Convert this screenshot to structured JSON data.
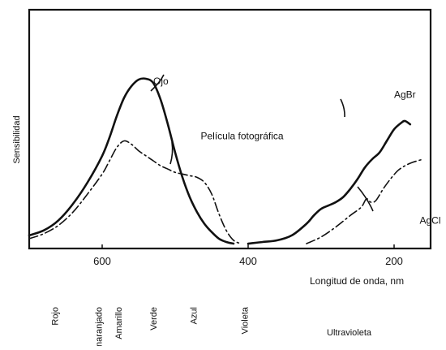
{
  "chart_data": {
    "type": "line",
    "title": "",
    "xlabel": "Longitud de onda, nm",
    "ylabel": "Sensibilidad",
    "xlim": [
      700,
      150
    ],
    "ylim": [
      0,
      1
    ],
    "x_ticks": [
      600,
      400,
      200
    ],
    "grid": false,
    "legend": "none (curves labeled directly)",
    "series": [
      {
        "name": "Ojo",
        "style": "solid",
        "label_point": [
          530,
          0.96
        ],
        "points": [
          [
            700,
            0.05
          ],
          [
            680,
            0.08
          ],
          [
            660,
            0.14
          ],
          [
            640,
            0.24
          ],
          [
            620,
            0.37
          ],
          [
            600,
            0.53
          ],
          [
            590,
            0.64
          ],
          [
            580,
            0.77
          ],
          [
            570,
            0.88
          ],
          [
            560,
            0.95
          ],
          [
            550,
            0.99
          ],
          [
            540,
            0.995
          ],
          [
            530,
            0.97
          ],
          [
            520,
            0.87
          ],
          [
            510,
            0.72
          ],
          [
            500,
            0.55
          ],
          [
            490,
            0.4
          ],
          [
            480,
            0.28
          ],
          [
            470,
            0.19
          ],
          [
            460,
            0.12
          ],
          [
            450,
            0.07
          ],
          [
            440,
            0.03
          ],
          [
            430,
            0.01
          ],
          [
            420,
            0.0
          ]
        ]
      },
      {
        "name": "Película fotográfica",
        "style": "dashdot",
        "label_point": [
          465,
          0.63
        ],
        "points": [
          [
            700,
            0.03
          ],
          [
            680,
            0.06
          ],
          [
            660,
            0.11
          ],
          [
            640,
            0.19
          ],
          [
            620,
            0.3
          ],
          [
            600,
            0.42
          ],
          [
            590,
            0.5
          ],
          [
            580,
            0.58
          ],
          [
            570,
            0.62
          ],
          [
            560,
            0.6
          ],
          [
            550,
            0.56
          ],
          [
            540,
            0.53
          ],
          [
            530,
            0.5
          ],
          [
            520,
            0.47
          ],
          [
            510,
            0.45
          ],
          [
            500,
            0.43
          ],
          [
            490,
            0.42
          ],
          [
            480,
            0.41
          ],
          [
            470,
            0.4
          ],
          [
            460,
            0.37
          ],
          [
            450,
            0.3
          ],
          [
            440,
            0.18
          ],
          [
            430,
            0.08
          ],
          [
            420,
            0.02
          ],
          [
            410,
            0.0
          ]
        ]
      },
      {
        "name": "AgBr",
        "style": "solid",
        "label_point": [
          200,
          0.88
        ],
        "points": [
          [
            400,
            0.0
          ],
          [
            380,
            0.01
          ],
          [
            360,
            0.02
          ],
          [
            340,
            0.05
          ],
          [
            320,
            0.12
          ],
          [
            310,
            0.17
          ],
          [
            300,
            0.21
          ],
          [
            290,
            0.23
          ],
          [
            280,
            0.25
          ],
          [
            270,
            0.28
          ],
          [
            260,
            0.33
          ],
          [
            250,
            0.39
          ],
          [
            240,
            0.46
          ],
          [
            230,
            0.51
          ],
          [
            220,
            0.55
          ],
          [
            210,
            0.62
          ],
          [
            200,
            0.69
          ],
          [
            190,
            0.73
          ],
          [
            185,
            0.74
          ],
          [
            178,
            0.72
          ]
        ]
      },
      {
        "name": "AgCl",
        "style": "dashdot",
        "label_point": [
          165,
          0.12
        ],
        "points": [
          [
            320,
            0.0
          ],
          [
            300,
            0.04
          ],
          [
            280,
            0.1
          ],
          [
            260,
            0.17
          ],
          [
            245,
            0.22
          ],
          [
            238,
            0.27
          ],
          [
            232,
            0.25
          ],
          [
            225,
            0.26
          ],
          [
            215,
            0.33
          ],
          [
            205,
            0.39
          ],
          [
            195,
            0.44
          ],
          [
            185,
            0.47
          ],
          [
            175,
            0.49
          ],
          [
            160,
            0.51
          ]
        ]
      }
    ],
    "color_bands": [
      {
        "label": "Rojo",
        "x": 665
      },
      {
        "label": "Anaranjado",
        "x": 605
      },
      {
        "label": "Amarillo",
        "x": 578
      },
      {
        "label": "Verde",
        "x": 530
      },
      {
        "label": "Azul",
        "x": 475
      },
      {
        "label": "Violeta",
        "x": 405
      },
      {
        "label": "Ultravioleta",
        "x": 270
      }
    ]
  }
}
